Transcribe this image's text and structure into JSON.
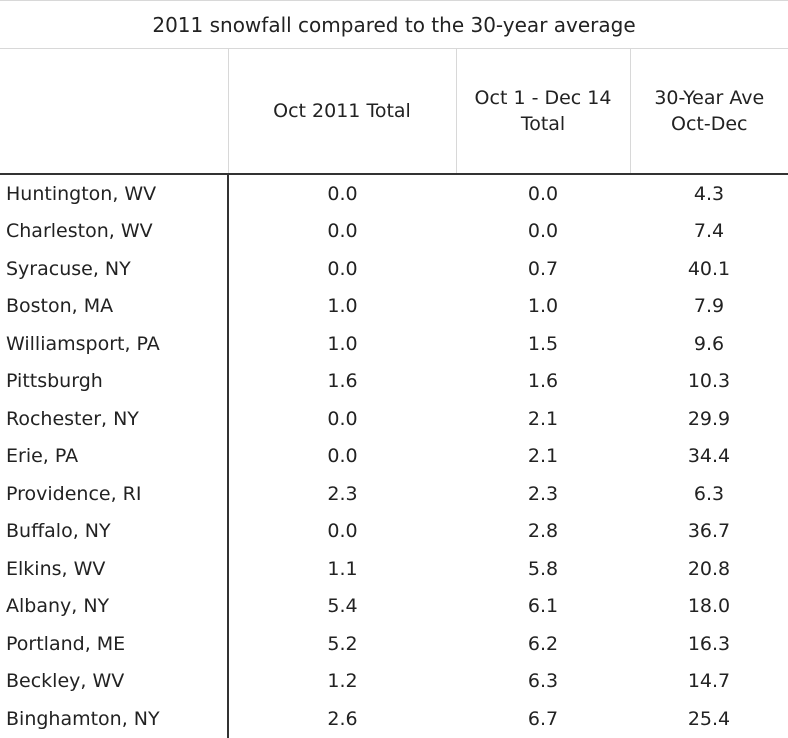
{
  "table": {
    "title": "2011 snowfall compared to the 30-year average",
    "columns": [
      "Oct 2011 Total",
      "Oct 1 - Dec 14 Total",
      "30-Year Ave Oct-Dec"
    ],
    "rows": [
      [
        "Huntington, WV",
        "0.0",
        "0.0",
        "4.3"
      ],
      [
        "Charleston, WV",
        "0.0",
        "0.0",
        "7.4"
      ],
      [
        "Syracuse, NY",
        "0.0",
        "0.7",
        "40.1"
      ],
      [
        "Boston, MA",
        "1.0",
        "1.0",
        "7.9"
      ],
      [
        "Williamsport, PA",
        "1.0",
        "1.5",
        "9.6"
      ],
      [
        "Pittsburgh",
        "1.6",
        "1.6",
        "10.3"
      ],
      [
        "Rochester, NY",
        "0.0",
        "2.1",
        "29.9"
      ],
      [
        "Erie, PA",
        "0.0",
        "2.1",
        "34.4"
      ],
      [
        "Providence, RI",
        "2.3",
        "2.3",
        "6.3"
      ],
      [
        "Buffalo, NY",
        "0.0",
        "2.8",
        "36.7"
      ],
      [
        "Elkins, WV",
        "1.1",
        "5.8",
        "20.8"
      ],
      [
        "Albany, NY",
        "5.4",
        "6.1",
        "18.0"
      ],
      [
        "Portland, ME",
        "5.2",
        "6.2",
        "16.3"
      ],
      [
        "Beckley, WV",
        "1.2",
        "6.3",
        "14.7"
      ],
      [
        "Binghamton, NY",
        "2.6",
        "6.7",
        "25.4"
      ]
    ]
  }
}
